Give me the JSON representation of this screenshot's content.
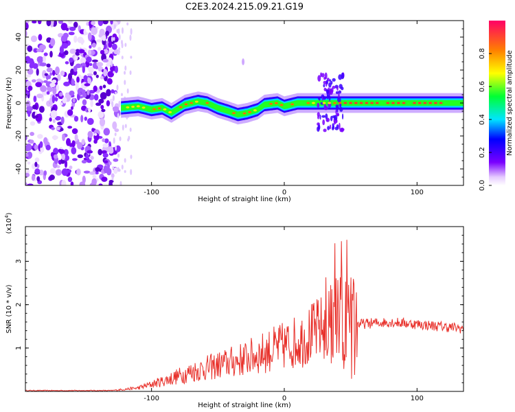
{
  "title": "C2E3.2024.215.09.21.G19",
  "spectrogram": {
    "type": "heatmap",
    "xlabel": "Height of straight line (km)",
    "ylabel": "Frequency (Hz)",
    "xlim": [
      -195,
      135
    ],
    "ylim": [
      -50,
      50
    ],
    "x_ticks": [
      "-100",
      "0",
      "100"
    ],
    "x_tick_values": [
      -100,
      0,
      100
    ],
    "y_ticks": [
      "-40",
      "-20",
      "0",
      "20",
      "40"
    ],
    "y_tick_values": [
      -40,
      -20,
      0,
      20,
      40
    ],
    "ridge": [
      [
        -123,
        -3
      ],
      [
        -110,
        -2
      ],
      [
        -100,
        -4
      ],
      [
        -92,
        -3
      ],
      [
        -85,
        -6
      ],
      [
        -75,
        -1
      ],
      [
        -65,
        1
      ],
      [
        -58,
        0
      ],
      [
        -50,
        -3
      ],
      [
        -42,
        -5
      ],
      [
        -35,
        -7
      ],
      [
        -28,
        -6
      ],
      [
        -20,
        -4
      ],
      [
        -15,
        -1
      ],
      [
        -5,
        0
      ],
      [
        0,
        -2
      ],
      [
        10,
        0
      ],
      [
        25,
        0
      ],
      [
        40,
        0
      ],
      [
        60,
        0
      ],
      [
        80,
        0
      ],
      [
        100,
        0
      ],
      [
        120,
        0
      ],
      [
        135,
        0
      ]
    ]
  },
  "colorbar": {
    "label": "Normalized spectral amplitude",
    "ticks": [
      "0.0",
      "0.2",
      "0.4",
      "0.6",
      "0.8"
    ],
    "tick_values": [
      0.0,
      0.2,
      0.4,
      0.6,
      0.8
    ]
  },
  "snr": {
    "type": "line",
    "xlabel": "Height of straight line (km)",
    "ylabel": "SNR (10 * v/v)",
    "scale_note": "(x10",
    "scale_exp": "4",
    "scale_close": ")",
    "xlim": [
      -195,
      135
    ],
    "ylim": [
      0,
      3.8
    ],
    "x_ticks": [
      "-100",
      "0",
      "100"
    ],
    "x_tick_values": [
      -100,
      0,
      100
    ],
    "y_ticks": [
      "1",
      "2",
      "3"
    ],
    "y_tick_values": [
      1,
      2,
      3
    ],
    "color": "#e8302a",
    "envelope": [
      [
        -195,
        0.02
      ],
      [
        -130,
        0.02
      ],
      [
        -110,
        0.08
      ],
      [
        -90,
        0.25
      ],
      [
        -70,
        0.45
      ],
      [
        -50,
        0.6
      ],
      [
        -30,
        0.75
      ],
      [
        -10,
        0.95
      ],
      [
        10,
        1.15
      ],
      [
        25,
        1.4
      ],
      [
        32,
        1.5
      ],
      [
        35,
        1.6
      ],
      [
        55,
        1.55
      ],
      [
        80,
        1.6
      ],
      [
        100,
        1.55
      ],
      [
        135,
        1.45
      ]
    ]
  }
}
